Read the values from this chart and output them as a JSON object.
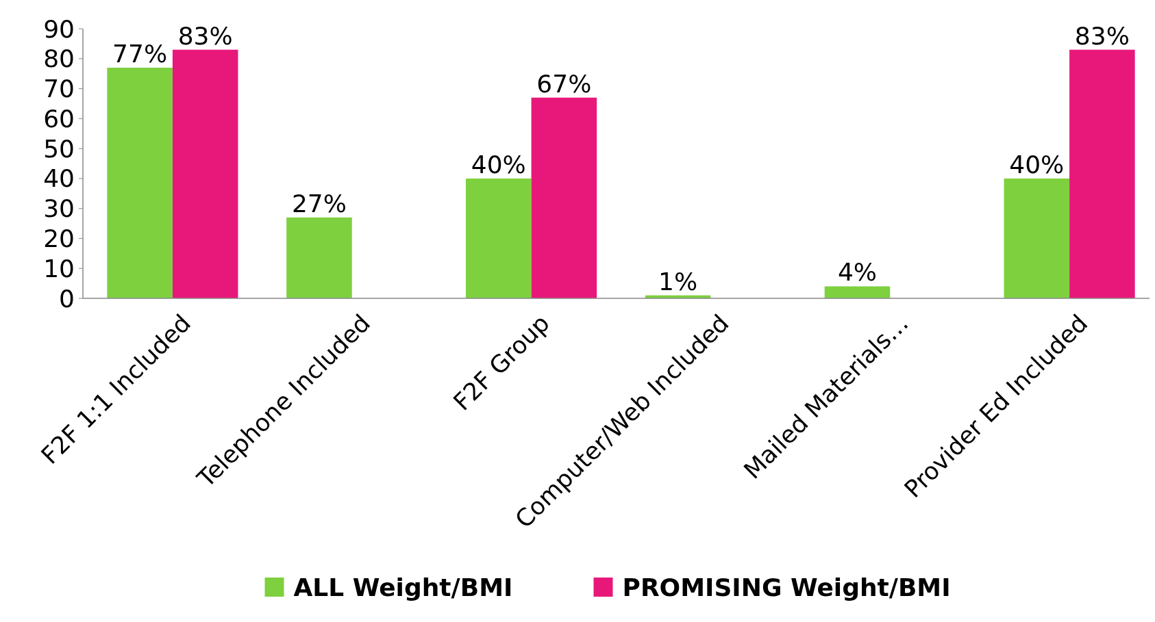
{
  "chart_data": {
    "type": "bar",
    "categories": [
      "F2F 1:1 Included",
      "Telephone Included",
      "F2F Group",
      "Computer/Web Included",
      "Mailed Materials…",
      "Provider Ed Included"
    ],
    "series": [
      {
        "name": "ALL Weight/BMI",
        "color": "#7ed03f",
        "values": [
          77,
          27,
          40,
          1,
          4,
          40
        ],
        "value_labels": [
          "77%",
          "27%",
          "40%",
          "1%",
          "4%",
          "40%"
        ]
      },
      {
        "name": "PROMISING Weight/BMI",
        "color": "#e8187a",
        "values": [
          83,
          null,
          67,
          null,
          null,
          83
        ],
        "value_labels": [
          "83%",
          null,
          "67%",
          null,
          null,
          "83%"
        ]
      }
    ],
    "ylim": [
      0,
      90
    ],
    "yticks": [
      0,
      10,
      20,
      30,
      40,
      50,
      60,
      70,
      80,
      90
    ],
    "grid": false,
    "legend": "bottom"
  }
}
